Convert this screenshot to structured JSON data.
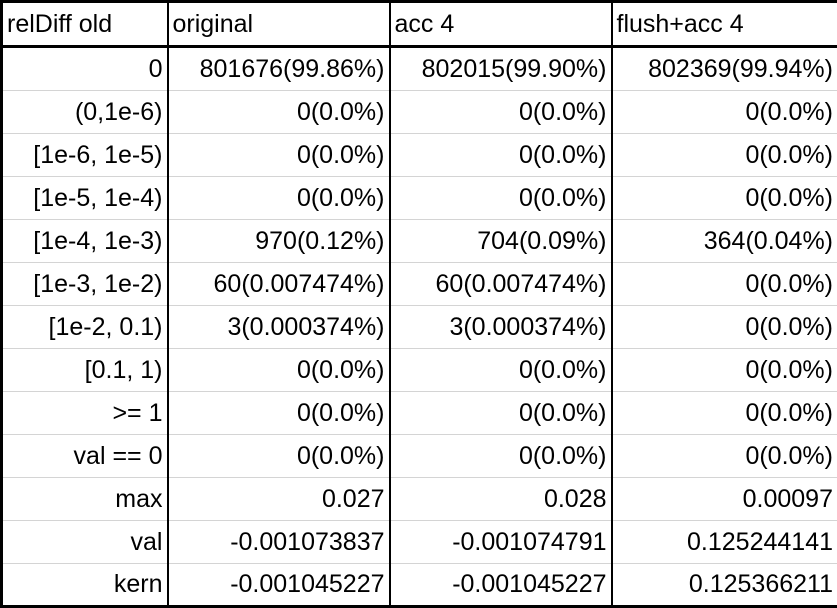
{
  "table": {
    "headers": [
      "relDiff old",
      "original",
      "acc 4",
      "flush+acc 4"
    ],
    "rows": [
      [
        "0",
        "801676(99.86%)",
        "802015(99.90%)",
        "802369(99.94%)"
      ],
      [
        "(0,1e-6)",
        "0(0.0%)",
        "0(0.0%)",
        "0(0.0%)"
      ],
      [
        "[1e-6, 1e-5)",
        "0(0.0%)",
        "0(0.0%)",
        "0(0.0%)"
      ],
      [
        "[1e-5, 1e-4)",
        "0(0.0%)",
        "0(0.0%)",
        "0(0.0%)"
      ],
      [
        "[1e-4, 1e-3)",
        "970(0.12%)",
        "704(0.09%)",
        "364(0.04%)"
      ],
      [
        "[1e-3, 1e-2)",
        "60(0.007474%)",
        "60(0.007474%)",
        "0(0.0%)"
      ],
      [
        "[1e-2, 0.1)",
        "3(0.000374%)",
        "3(0.000374%)",
        "0(0.0%)"
      ],
      [
        "[0.1, 1)",
        "0(0.0%)",
        "0(0.0%)",
        "0(0.0%)"
      ],
      [
        ">= 1",
        "0(0.0%)",
        "0(0.0%)",
        "0(0.0%)"
      ],
      [
        "val == 0",
        "0(0.0%)",
        "0(0.0%)",
        "0(0.0%)"
      ],
      [
        "max",
        "0.027",
        "0.028",
        "0.00097"
      ],
      [
        "val",
        "-0.001073837",
        "-0.001074791",
        "0.125244141"
      ],
      [
        "kern",
        "-0.001045227",
        "-0.001045227",
        "0.125366211"
      ]
    ]
  }
}
